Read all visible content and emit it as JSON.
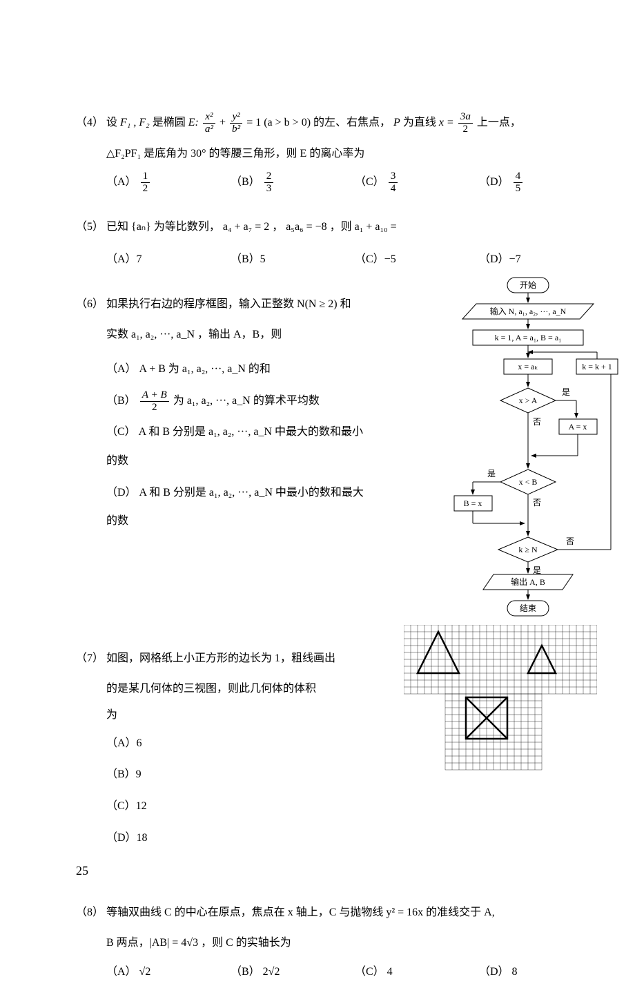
{
  "questions": {
    "q4": {
      "num": "（4）",
      "text_1": "设 ",
      "f1": "F₁",
      "f2": ", F₂",
      "text_2": " 是椭圆 ",
      "E": "E: ",
      "eq_pre": "",
      "frac1_num": "x²",
      "frac1_den": "a²",
      "plus": " + ",
      "frac2_num": "y²",
      "frac2_den": "b²",
      "eq_post": " = 1  (a > b > 0) 的左、右焦点，",
      "P": "P",
      "text_3": " 为直线 ",
      "x_eq": "x = ",
      "frac3_num": "3a",
      "frac3_den": "2",
      "text_4": " 上一点，",
      "line2": "△F₂PF₁ 是底角为 30° 的等腰三角形，则 E 的离心率为",
      "opts": {
        "A": {
          "label": "（A）",
          "num": "1",
          "den": "2"
        },
        "B": {
          "label": "（B）",
          "num": "2",
          "den": "3"
        },
        "C": {
          "label": "（C）",
          "num": "3",
          "den": "4"
        },
        "D": {
          "label": "（D）",
          "num": "4",
          "den": "5"
        }
      }
    },
    "q5": {
      "num": "（5）",
      "text": "已知 {aₙ} 为等比数列， a₄ + a₇ = 2 ， a₅a₆ = −8 ，则 a₁ + a₁₀ =",
      "opts": {
        "A": "（A）7",
        "B": "（B）5",
        "C": "（C）−5",
        "D": "（D）−7"
      }
    },
    "q6": {
      "num": "（6）",
      "line1": "如果执行右边的程序框图，输入正整数 N(N ≥ 2) 和",
      "line2": "实数 a₁, a₂, ···, a_N ，输出 A，B，则",
      "opts": {
        "A": "（A） A + B 为 a₁, a₂, ···, a_N 的和",
        "B_pre": "（B） ",
        "B_num": "A + B",
        "B_den": "2",
        "B_post": " 为 a₁, a₂, ···, a_N 的算术平均数",
        "C": "（C） A 和 B 分别是 a₁, a₂, ···, a_N 中最大的数和最小的数",
        "D": "（D） A 和 B 分别是 a₁, a₂, ···, a_N 中最小的数和最大的数"
      }
    },
    "q7": {
      "num": "（7）",
      "line1": "如图，网格纸上小正方形的边长为 1，粗线画出",
      "line2": "的是某几何体的三视图，则此几何体的体积为",
      "opts": {
        "A": "（A）6",
        "B": "（B）9",
        "C": "（C）12",
        "D": "（D）18"
      }
    },
    "q8": {
      "num": "（8）",
      "line1": "等轴双曲线 C 的中心在原点，焦点在 x 轴上，C 与抛物线 y² = 16x 的准线交于 A,",
      "line2": "B 两点，|AB| = 4√3 ，则 C 的实轴长为",
      "opts": {
        "A": "（A） √2",
        "B": "（B） 2√2",
        "C": "（C） 4",
        "D": "（D） 8"
      }
    }
  },
  "flowchart": {
    "start": "开始",
    "input": "输入 N, a₁, a₂, ···, a_N",
    "init": "k = 1, A = a₁, B = a₁",
    "assign_x": "x = aₖ",
    "inc": "k = k + 1",
    "cond1": "x > A",
    "yes1": "是",
    "no1": "否",
    "set_A": "A = x",
    "cond2": "x < B",
    "yes2": "是",
    "no2": "否",
    "set_B": "B = x",
    "cond3": "k ≥ N",
    "yes3": "是",
    "no3": "否",
    "output": "输出 A, B",
    "end": "结束"
  },
  "page": "25",
  "colors": {
    "text": "#000000",
    "bg": "#ffffff",
    "line": "#000000"
  }
}
